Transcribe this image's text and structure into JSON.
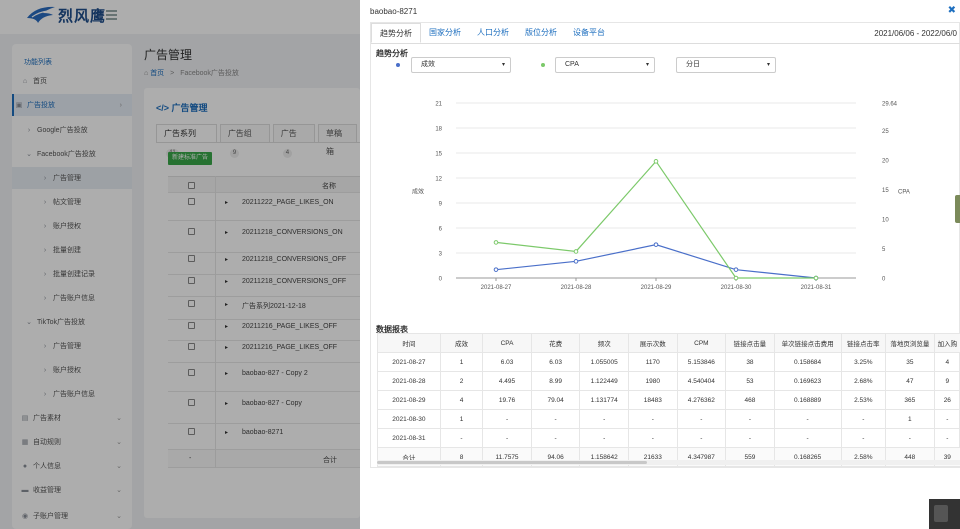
{
  "app": {
    "logo_text": "烈风鹰"
  },
  "sidebar": {
    "title": "功能列表",
    "items": [
      {
        "label": "首页",
        "icon": "home-icon",
        "glyph": "⌂"
      },
      {
        "label": "广告投放",
        "icon": "bag-icon",
        "glyph": "▣"
      },
      {
        "label": "Google广告投放",
        "icon": "chevron-right-icon",
        "glyph": "›"
      },
      {
        "label": "Facebook广告投放",
        "icon": "chevron-down-icon",
        "glyph": "⌄"
      },
      {
        "label": "广告管理",
        "icon": "chevron-right-icon",
        "glyph": "›"
      },
      {
        "label": "帖文管理",
        "icon": "chevron-right-icon",
        "glyph": "›"
      },
      {
        "label": "账户授权",
        "icon": "chevron-right-icon",
        "glyph": "›"
      },
      {
        "label": "批量创建",
        "icon": "chevron-right-icon",
        "glyph": "›"
      },
      {
        "label": "批量创建记录",
        "icon": "chevron-right-icon",
        "glyph": "›"
      },
      {
        "label": "广告账户信息",
        "icon": "chevron-right-icon",
        "glyph": "›"
      },
      {
        "label": "TikTok广告投放",
        "icon": "chevron-down-icon",
        "glyph": "⌄"
      },
      {
        "label": "广告管理",
        "icon": "chevron-right-icon",
        "glyph": "›"
      },
      {
        "label": "账户授权",
        "icon": "chevron-right-icon",
        "glyph": "›"
      },
      {
        "label": "广告账户信息",
        "icon": "chevron-right-icon",
        "glyph": "›"
      },
      {
        "label": "广告素材",
        "icon": "image-icon",
        "glyph": "▤"
      },
      {
        "label": "自动规则",
        "icon": "rule-icon",
        "glyph": "▦"
      },
      {
        "label": "个人信息",
        "icon": "user-icon",
        "glyph": "●"
      },
      {
        "label": "收益管理",
        "icon": "card-icon",
        "glyph": "▬"
      },
      {
        "label": "子账户管理",
        "icon": "users-icon",
        "glyph": "◉"
      }
    ]
  },
  "main": {
    "page_title": "广告管理",
    "breadcrumb": {
      "home": "首页",
      "sep": ">",
      "current": "Facebook广告投放"
    },
    "card_title": "</> 广告管理",
    "tabs": [
      {
        "label": "广告系列",
        "count": "41"
      },
      {
        "label": "广告组",
        "count": "9"
      },
      {
        "label": "广告",
        "count": "4"
      },
      {
        "label": "草稿箱",
        "count": ""
      }
    ],
    "new_ad_button": "新建标准广告",
    "table_header_name": "名称",
    "table_footer_dash": "-",
    "table_footer_total": "合计",
    "rows": [
      "20211222_PAGE_LIKES_ON",
      "20211218_CONVERSIONS_ON",
      "20211218_CONVERSIONS_OFF",
      "20211218_CONVERSIONS_OFF",
      "广告系列2021-12-18",
      "20211216_PAGE_LIKES_OFF",
      "20211216_PAGE_LIKES_OFF",
      "baobao-827 - Copy 2",
      "baobao-827 - Copy",
      "baobao-8271"
    ]
  },
  "modal": {
    "title": "baobao-8271",
    "close_glyph": "✖",
    "tabs": [
      "趋势分析",
      "国家分析",
      "人口分析",
      "版位分析",
      "设备平台"
    ],
    "date_range": "2021/06/06 - 2022/06/0",
    "trend_heading": "趋势分析",
    "select_metric1": "成效",
    "select_metric2": "CPA",
    "select_granularity": "分日",
    "caret": "▾",
    "report_heading": "数据报表",
    "series_colors": {
      "results": "#4a6fc9",
      "cpa": "#7cc96a"
    },
    "report": {
      "columns": [
        "时间",
        "成效",
        "CPA",
        "花费",
        "频次",
        "展示次数",
        "CPM",
        "链接点击量",
        "单次链接点击费用",
        "链接点击率",
        "落地页浏览量",
        "加入购"
      ],
      "rows": [
        [
          "2021-08-27",
          "1",
          "6.03",
          "6.03",
          "1.055005",
          "1170",
          "5.153846",
          "38",
          "0.158684",
          "3.25%",
          "35",
          "4"
        ],
        [
          "2021-08-28",
          "2",
          "4.495",
          "8.99",
          "1.122449",
          "1980",
          "4.540404",
          "53",
          "0.169623",
          "2.68%",
          "47",
          "9"
        ],
        [
          "2021-08-29",
          "4",
          "19.76",
          "79.04",
          "1.131774",
          "18483",
          "4.276362",
          "468",
          "0.168889",
          "2.53%",
          "365",
          "26"
        ],
        [
          "2021-08-30",
          "1",
          "-",
          "-",
          "-",
          "-",
          "-",
          "-",
          "-",
          "-",
          "1",
          "-"
        ],
        [
          "2021-08-31",
          "-",
          "-",
          "-",
          "-",
          "-",
          "-",
          "-",
          "-",
          "-",
          "-",
          "-"
        ]
      ],
      "total": [
        "合计",
        "8",
        "11.7575",
        "94.06",
        "1.158642",
        "21633",
        "4.347987",
        "559",
        "0.168265",
        "2.58%",
        "448",
        "39"
      ]
    }
  },
  "chart_data": {
    "type": "line",
    "title": "",
    "xlabel": "",
    "ylabel_left": "成效",
    "ylabel_right": "CPA",
    "categories": [
      "2021-08-27",
      "2021-08-28",
      "2021-08-29",
      "2021-08-30",
      "2021-08-31"
    ],
    "y_left": {
      "ticks": [
        0,
        3,
        6,
        9,
        12,
        15,
        18,
        21
      ],
      "range": [
        0,
        21
      ]
    },
    "y_right": {
      "ticks": [
        0,
        5,
        10,
        15,
        20,
        25,
        29.64
      ],
      "range": [
        0,
        29.64
      ]
    },
    "grid": true,
    "series": [
      {
        "name": "成效",
        "axis": "left",
        "color": "#4a6fc9",
        "values": [
          1,
          2,
          4,
          1,
          0
        ]
      },
      {
        "name": "CPA",
        "axis": "right",
        "color": "#7cc96a",
        "values": [
          6.03,
          4.495,
          19.76,
          0,
          0
        ]
      }
    ]
  }
}
